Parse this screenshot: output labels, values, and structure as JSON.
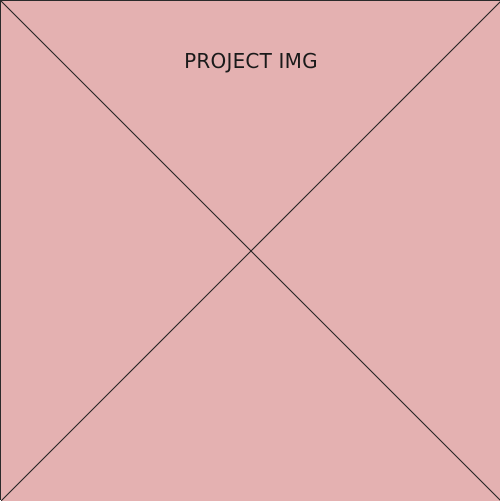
{
  "placeholder": {
    "label": "PROJECT IMG",
    "fill_color": "#e4b1b1",
    "line_color": "#1f1f1f",
    "border_color": "#2a2a2a"
  }
}
